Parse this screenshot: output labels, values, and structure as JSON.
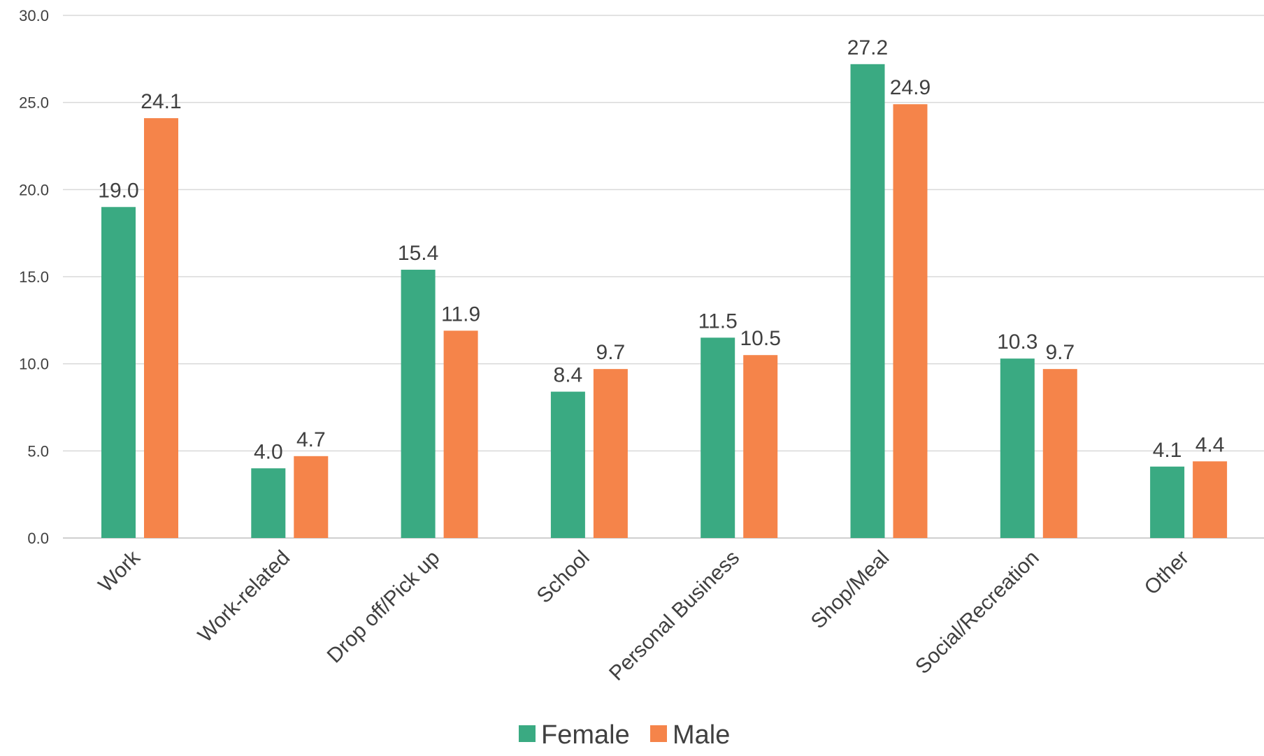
{
  "chart_data": {
    "type": "bar",
    "categories": [
      "Work",
      "Work-related",
      "Drop off/Pick up",
      "School",
      "Personal Business",
      "Shop/Meal",
      "Social/Recreation",
      "Other"
    ],
    "series": [
      {
        "name": "Female",
        "color": "#3aaa82",
        "values": [
          19.0,
          4.0,
          15.4,
          8.4,
          11.5,
          27.2,
          10.3,
          4.1
        ]
      },
      {
        "name": "Male",
        "color": "#f5844a",
        "values": [
          24.1,
          4.7,
          11.9,
          9.7,
          10.5,
          24.9,
          9.7,
          4.4
        ]
      }
    ],
    "value_labels": [
      [
        "19.0",
        "4.0",
        "15.4",
        "8.4",
        "11.5",
        "27.2",
        "10.3",
        "4.1"
      ],
      [
        "24.1",
        "4.7",
        "11.9",
        "9.7",
        "10.5",
        "24.9",
        "9.7",
        "4.4"
      ]
    ],
    "ylim": [
      0,
      30
    ],
    "yticks": [
      "0.0",
      "5.0",
      "10.0",
      "15.0",
      "20.0",
      "25.0",
      "30.0"
    ],
    "ytick_values": [
      0,
      5,
      10,
      15,
      20,
      25,
      30
    ],
    "grid": true,
    "legend_position": "bottom",
    "title": "",
    "xlabel": "",
    "ylabel": ""
  }
}
